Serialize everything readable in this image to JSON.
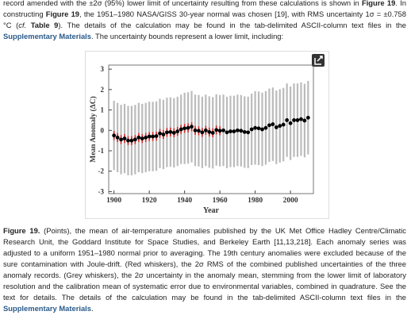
{
  "paragraph": {
    "segments": [
      {
        "text": "record amended with the ±2σ (95%) lower limit of uncertainty resulting from these calculations is shown in ",
        "bold": false
      },
      {
        "text": "Figure 19",
        "bold": true
      },
      {
        "text": ". In constructing ",
        "bold": false
      },
      {
        "text": "Figure 19",
        "bold": true
      },
      {
        "text": ", the 1951–1980 NASA/GISS 30-year normal was chosen [19], with RMS uncertainty 1σ = ±0.758 °C (",
        "bold": false
      },
      {
        "text": "cf.",
        "italic": true
      },
      {
        "text": " ",
        "bold": false
      },
      {
        "text": "Table 9",
        "bold": true
      },
      {
        "text": "). The details of the calculation may be found in the tab-delimited ASCII-column text files in the ",
        "bold": false
      },
      {
        "text": "Supplementary Materials",
        "link": true
      },
      {
        "text": ". The uncertainty bounds represent a lower limit, including:",
        "bold": false
      }
    ]
  },
  "figure": {
    "chart_data": {
      "type": "scatter-errorbar",
      "xlabel": "Year",
      "ylabel": "Mean Anomaly (ΔC)",
      "xlim": [
        1897,
        2013
      ],
      "ylim": [
        -3.1,
        3.2
      ],
      "xticks": [
        1900,
        1920,
        1940,
        1960,
        1980,
        2000
      ],
      "yticks": [
        -3,
        -2,
        -1,
        0,
        1,
        2,
        3
      ],
      "x": [
        1900,
        1902,
        1904,
        1906,
        1908,
        1910,
        1912,
        1914,
        1916,
        1918,
        1920,
        1922,
        1924,
        1926,
        1928,
        1930,
        1932,
        1934,
        1936,
        1938,
        1940,
        1942,
        1944,
        1946,
        1948,
        1950,
        1952,
        1954,
        1956,
        1958,
        1960,
        1962,
        1964,
        1966,
        1968,
        1970,
        1972,
        1974,
        1976,
        1978,
        1980,
        1982,
        1984,
        1986,
        1988,
        1990,
        1992,
        1994,
        1996,
        1998,
        2000,
        2002,
        2004,
        2006,
        2008,
        2010
      ],
      "values": [
        -0.25,
        -0.35,
        -0.45,
        -0.4,
        -0.5,
        -0.5,
        -0.45,
        -0.35,
        -0.4,
        -0.35,
        -0.3,
        -0.3,
        -0.28,
        -0.15,
        -0.2,
        -0.1,
        -0.08,
        -0.12,
        -0.05,
        0.05,
        0.1,
        0.12,
        0.18,
        0.0,
        -0.02,
        -0.1,
        0.0,
        -0.08,
        -0.12,
        0.02,
        -0.02,
        0.0,
        -0.1,
        -0.05,
        -0.05,
        0.0,
        -0.02,
        -0.08,
        -0.1,
        0.05,
        0.12,
        0.1,
        0.05,
        0.12,
        0.25,
        0.3,
        0.15,
        0.22,
        0.28,
        0.5,
        0.35,
        0.5,
        0.5,
        0.55,
        0.48,
        0.62
      ],
      "red_error": [
        0.22,
        0.22,
        0.22,
        0.22,
        0.22,
        0.22,
        0.22,
        0.22,
        0.22,
        0.22,
        0.22,
        0.22,
        0.22,
        0.22,
        0.22,
        0.22,
        0.22,
        0.22,
        0.22,
        0.22,
        0.22,
        0.22,
        0.22,
        0.22,
        0.22,
        0.22,
        0.22,
        0.22,
        0.22,
        0.22,
        0.22,
        null,
        null,
        null,
        null,
        null,
        null,
        null,
        null,
        null,
        null,
        null,
        null,
        null,
        null,
        null,
        null,
        null,
        null,
        null,
        null,
        null,
        null,
        null,
        null,
        null
      ],
      "grey_error": [
        1.7,
        1.7,
        1.7,
        1.7,
        1.7,
        1.7,
        1.7,
        1.7,
        1.7,
        1.7,
        1.7,
        1.7,
        1.7,
        1.7,
        1.7,
        1.7,
        1.7,
        1.7,
        1.7,
        1.7,
        1.75,
        1.75,
        1.75,
        1.75,
        1.75,
        1.75,
        1.75,
        1.75,
        1.75,
        1.75,
        1.75,
        1.75,
        1.75,
        1.75,
        1.75,
        1.75,
        1.75,
        1.75,
        1.75,
        1.75,
        1.8,
        1.8,
        1.8,
        1.8,
        1.8,
        1.8,
        1.8,
        1.8,
        1.8,
        1.8,
        1.8,
        1.8,
        1.8,
        1.8,
        1.8,
        1.8
      ],
      "point_color": "#000000",
      "red_color": "#e03030",
      "grey_color": "#bbbbbb"
    }
  },
  "caption": {
    "segments": [
      {
        "text": "Figure 19.",
        "bold": true
      },
      {
        "text": " (Points), the mean of air-temperature anomalies published by the UK Met Office Hadley Centre/Climatic Research Unit, the Goddard Institute for Space Studies, and Berkeley Earth [11,13,218]. Each anomaly series was adjusted to a uniform 1951–1980 normal prior to averaging. The 19th century anomalies were excluded because of the sure contamination with Joule-drift. (Red whiskers), the 2σ RMS of the combined published uncertainties of the three anomaly records. (Grey whiskers), the 2σ uncertainty in the anomaly mean, stemming from the lower limit of laboratory resolution and the calibration mean of systematic error due to environmental variables, combined in quadrature. See the text for details. The details of the calculation may be found in the tab-delimited ASCII-column text files in the ",
        "bold": false
      },
      {
        "text": "Supplementary Materials",
        "link": true
      },
      {
        "text": ".",
        "bold": false
      }
    ]
  }
}
